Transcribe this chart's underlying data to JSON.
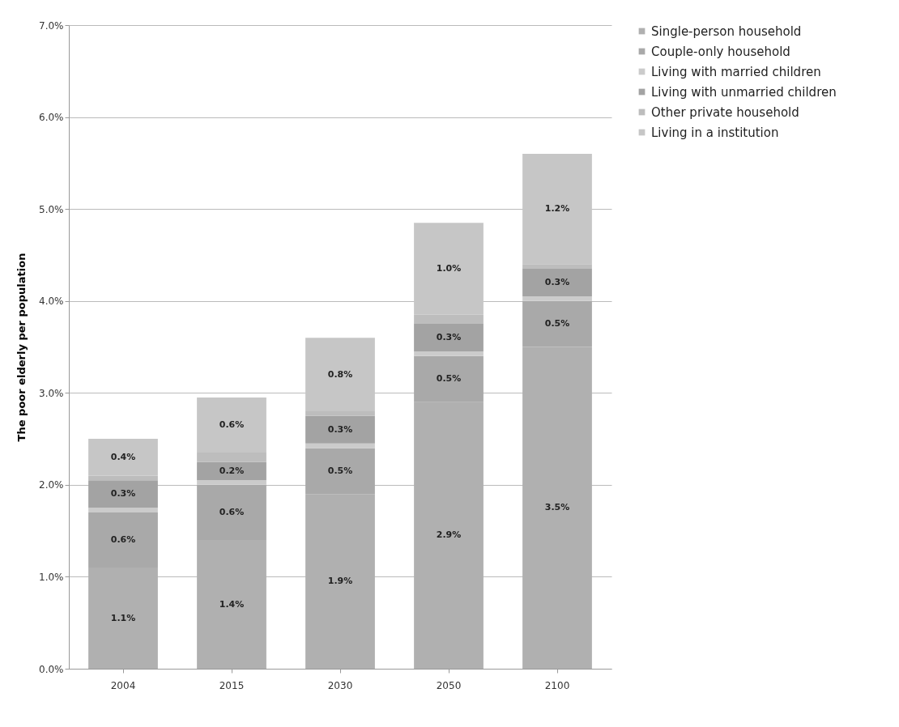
{
  "chart_data": {
    "type": "bar",
    "stacked": true,
    "ylabel": "The poor elderly per population",
    "categories": [
      "2004",
      "2015",
      "2030",
      "2050",
      "2100"
    ],
    "series": [
      {
        "name": "Single-person household",
        "color": "#b0b0b0",
        "values": [
          1.1,
          1.4,
          1.9,
          2.9,
          3.5
        ],
        "value_labels": [
          "1.1%",
          "1.4%",
          "1.9%",
          "2.9%",
          "3.5%"
        ]
      },
      {
        "name": "Couple-only household",
        "color": "#a9a9a9",
        "values": [
          0.6,
          0.6,
          0.5,
          0.5,
          0.5
        ],
        "value_labels": [
          "0.6%",
          "0.6%",
          "0.5%",
          "0.5%",
          "0.5%"
        ]
      },
      {
        "name": "Living with married children",
        "color": "#cbcbcb",
        "values": [
          0.05,
          0.05,
          0.05,
          0.05,
          0.05
        ],
        "value_labels": [
          null,
          null,
          null,
          null,
          null
        ]
      },
      {
        "name": "Living with unmarried children",
        "color": "#a3a3a3",
        "values": [
          0.3,
          0.2,
          0.3,
          0.3,
          0.3
        ],
        "value_labels": [
          "0.3%",
          "0.2%",
          "0.3%",
          "0.3%",
          "0.3%"
        ]
      },
      {
        "name": "Other private household",
        "color": "#bdbdbd",
        "values": [
          0.05,
          0.1,
          0.05,
          0.1,
          0.05
        ],
        "value_labels": [
          null,
          null,
          null,
          null,
          null
        ]
      },
      {
        "name": "Living in a institution",
        "color": "#c6c6c6",
        "values": [
          0.4,
          0.6,
          0.8,
          1.0,
          1.2
        ],
        "value_labels": [
          "0.4%",
          "0.6%",
          "0.8%",
          "1.0%",
          "1.2%"
        ]
      }
    ],
    "ylim": [
      0,
      7
    ],
    "yticks": [
      {
        "value": 0,
        "label": "0.0%"
      },
      {
        "value": 1,
        "label": "1.0%"
      },
      {
        "value": 2,
        "label": "2.0%"
      },
      {
        "value": 3,
        "label": "3.0%"
      },
      {
        "value": 4,
        "label": "4.0%"
      },
      {
        "value": 5,
        "label": "5.0%"
      },
      {
        "value": 6,
        "label": "6.0%"
      },
      {
        "value": 7,
        "label": "7.0%"
      }
    ],
    "grid": "y",
    "legend": "right"
  }
}
